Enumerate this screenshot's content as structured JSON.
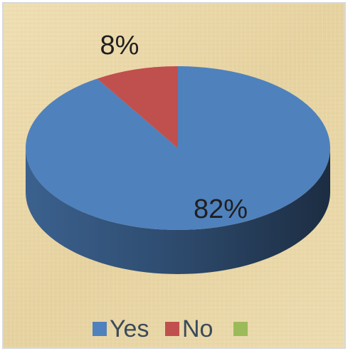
{
  "chart_data": {
    "type": "pie",
    "categories": [
      "Yes",
      "No",
      null
    ],
    "values": [
      82,
      8,
      0
    ],
    "value_labels": [
      "82%",
      "8%",
      null
    ],
    "colors": [
      "#4f81bd",
      "#c0504d",
      "#9bbb59"
    ],
    "legend": "bottom"
  }
}
